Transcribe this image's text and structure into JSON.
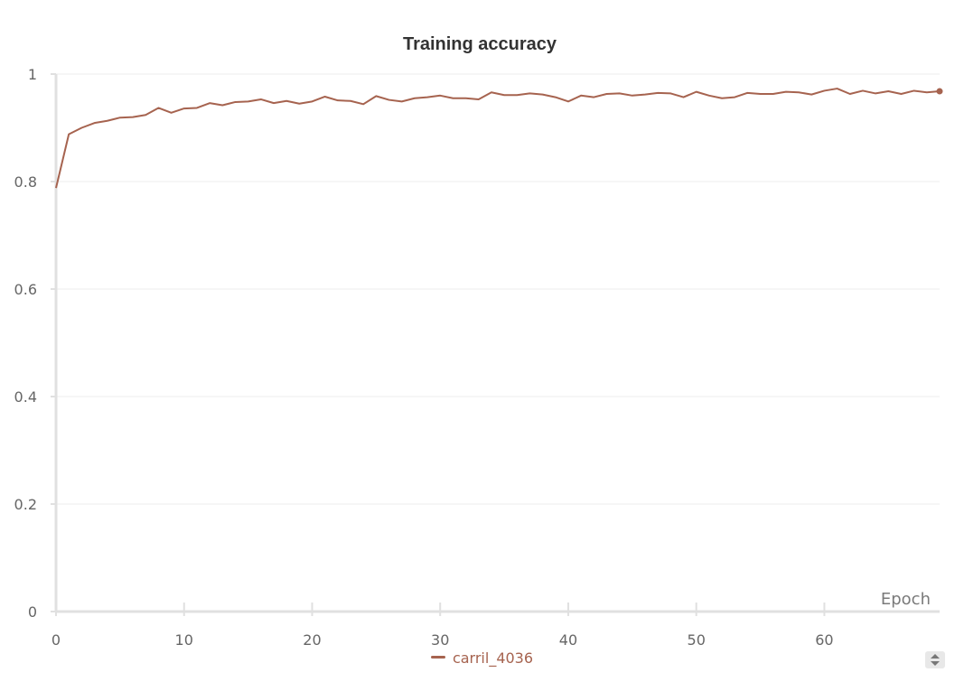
{
  "colors": {
    "series": "#a6634f",
    "grid": "#ececec",
    "axis": "#e0e0e0"
  },
  "legend": {
    "icon": "chevron-up-down-icon"
  },
  "chart_data": {
    "type": "line",
    "title": "Training accuracy",
    "xlabel": "Epoch",
    "ylabel": "",
    "xlim": [
      0,
      69
    ],
    "ylim": [
      0,
      1
    ],
    "x_ticks": [
      0,
      10,
      20,
      30,
      40,
      50,
      60
    ],
    "y_ticks": [
      0,
      0.2,
      0.4,
      0.6,
      0.8,
      1
    ],
    "y_tick_labels": [
      "0",
      "0.2",
      "0.4",
      "0.6",
      "0.8",
      "1"
    ],
    "grid": true,
    "legend_position": "bottom-center",
    "x": [
      0,
      1,
      2,
      3,
      4,
      5,
      6,
      7,
      8,
      9,
      10,
      11,
      12,
      13,
      14,
      15,
      16,
      17,
      18,
      19,
      20,
      21,
      22,
      23,
      24,
      25,
      26,
      27,
      28,
      29,
      30,
      31,
      32,
      33,
      34,
      35,
      36,
      37,
      38,
      39,
      40,
      41,
      42,
      43,
      44,
      45,
      46,
      47,
      48,
      49,
      50,
      51,
      52,
      53,
      54,
      55,
      56,
      57,
      58,
      59,
      60,
      61,
      62,
      63,
      64,
      65,
      66,
      67,
      68,
      69
    ],
    "series": [
      {
        "name": "carril_4036",
        "values": [
          0.788,
          0.888,
          0.9,
          0.909,
          0.913,
          0.919,
          0.92,
          0.924,
          0.937,
          0.928,
          0.936,
          0.937,
          0.946,
          0.942,
          0.948,
          0.949,
          0.953,
          0.946,
          0.95,
          0.945,
          0.949,
          0.958,
          0.951,
          0.95,
          0.944,
          0.959,
          0.952,
          0.949,
          0.955,
          0.957,
          0.96,
          0.955,
          0.955,
          0.953,
          0.966,
          0.961,
          0.961,
          0.964,
          0.962,
          0.957,
          0.949,
          0.96,
          0.957,
          0.963,
          0.964,
          0.96,
          0.962,
          0.965,
          0.964,
          0.957,
          0.967,
          0.96,
          0.955,
          0.957,
          0.965,
          0.963,
          0.963,
          0.967,
          0.966,
          0.962,
          0.969,
          0.973,
          0.963,
          0.969,
          0.964,
          0.968,
          0.963,
          0.969,
          0.966,
          0.968
        ]
      }
    ]
  }
}
